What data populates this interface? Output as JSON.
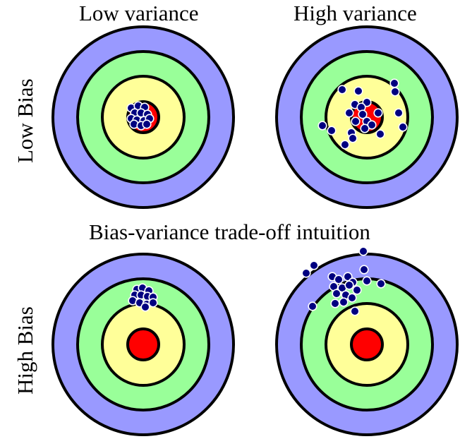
{
  "labels": {
    "col_low": "Low variance",
    "col_high": "High variance",
    "row_low": "Low Bias",
    "row_high": "High Bias",
    "center": "Bias-variance trade-off intuition"
  },
  "colors": {
    "ring_outer": "#9999ff",
    "ring_mid": "#99ff99",
    "ring_inner": "#ffff99",
    "bullseye": "#ff0000",
    "point_fill": "#000080",
    "point_stroke": "#ffffff"
  }
}
